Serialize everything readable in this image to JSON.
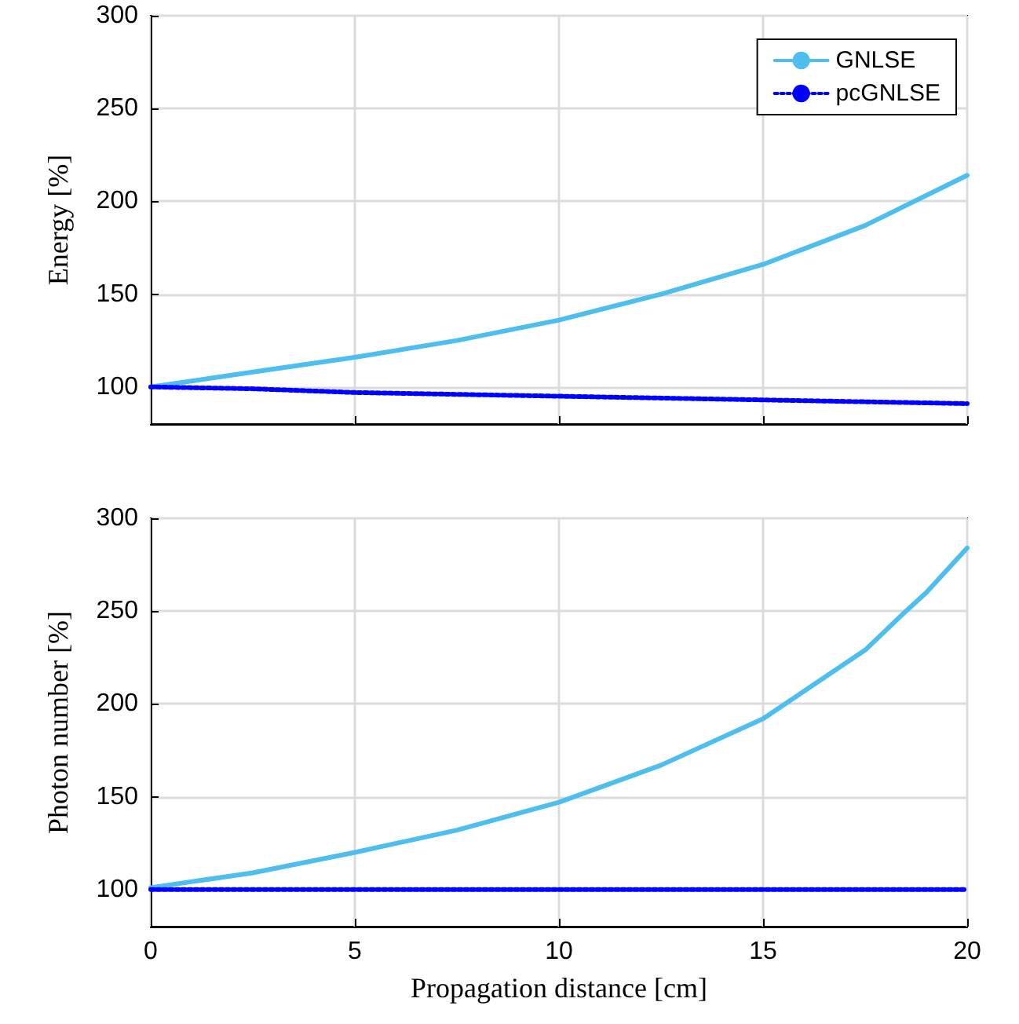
{
  "chart_data": [
    {
      "type": "line",
      "ylabel": "Energy [%]",
      "x": [
        0,
        2.5,
        5,
        7.5,
        10,
        12.5,
        15,
        17.5,
        20
      ],
      "xlim": [
        0,
        20
      ],
      "xticks": [
        0,
        5,
        10,
        15,
        20
      ],
      "ylim": [
        80,
        300
      ],
      "yticks": [
        100,
        150,
        200,
        250,
        300
      ],
      "grid": true,
      "legend": "top right",
      "tick_labels": "y",
      "marker": "none",
      "series": [
        {
          "name": "GNLSE",
          "color": "#4dbeee",
          "values": [
            100,
            108,
            116,
            125,
            136,
            150,
            166,
            187,
            214
          ]
        },
        {
          "name": "pcGNLSE",
          "color": "#0000ff",
          "line_style": "dotted",
          "values": [
            100,
            99,
            97,
            96,
            95,
            94,
            93,
            92,
            91
          ]
        }
      ]
    },
    {
      "type": "line",
      "ylabel": "Photon number [%]",
      "xlabel": "Propagation distance [cm]",
      "x": [
        0,
        2.5,
        5,
        7.5,
        10,
        12.5,
        15,
        17.5,
        18.5,
        19,
        20
      ],
      "xlim": [
        0,
        20
      ],
      "xticks": [
        0,
        5,
        10,
        15,
        20
      ],
      "ylim": [
        80,
        300
      ],
      "yticks": [
        100,
        150,
        200,
        250,
        300
      ],
      "grid": true,
      "marker": "none",
      "series": [
        {
          "color": "#4dbeee",
          "values": [
            101,
            109,
            120,
            132,
            147,
            167,
            192,
            229,
            250,
            260,
            284
          ]
        },
        {
          "color": "#0000ff",
          "line_style": "dotted",
          "values": [
            100,
            100,
            100,
            100,
            100,
            100,
            100,
            100,
            100,
            100,
            100
          ]
        }
      ]
    }
  ]
}
